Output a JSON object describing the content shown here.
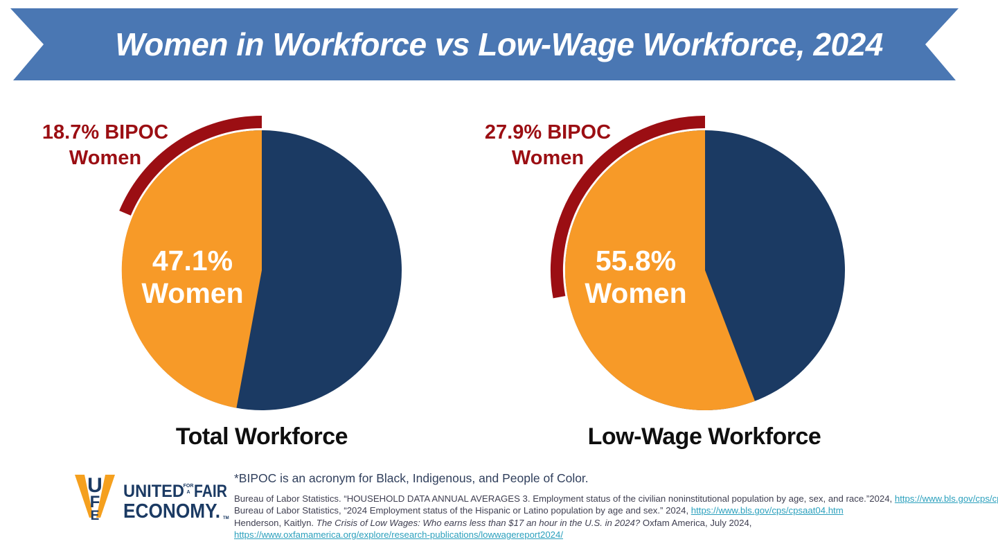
{
  "banner": {
    "title": "Women in Workforce vs Low-Wage Workforce, 2024",
    "color": "#4A77B3"
  },
  "chart_data": [
    {
      "type": "pie",
      "caption": "Total Workforce",
      "women_pct": 47.1,
      "bipoc_women_pct": 18.7,
      "center_label": [
        "47.1%",
        "Women"
      ],
      "arc_label": [
        "18.7% BIPOC",
        "Women"
      ],
      "slice_colors": {
        "women": "#F79A28",
        "remainder": "#1B3A63"
      },
      "arc_color": "#9B0E13"
    },
    {
      "type": "pie",
      "caption": "Low-Wage Workforce",
      "women_pct": 55.8,
      "bipoc_women_pct": 27.9,
      "center_label": [
        "55.8%",
        "Women"
      ],
      "arc_label": [
        "27.9% BIPOC",
        "Women"
      ],
      "slice_colors": {
        "women": "#F79A28",
        "remainder": "#1B3A63"
      },
      "arc_color": "#9B0E13"
    }
  ],
  "footer": {
    "logo": {
      "monogram": [
        "U",
        "F",
        "E"
      ],
      "word1": "UNITED",
      "word_mid_top": "FOR",
      "word_mid_bottom": "A",
      "word2": "FAIR",
      "word3": "ECONOMY.",
      "tm": "TM",
      "navy": "#1B3A63",
      "orange": "#F5A01E"
    },
    "footnote": "*BIPOC is an acronym for Black, Indigenous, and People of Color.",
    "citations": [
      {
        "text": "Bureau of Labor Statistics. “HOUSEHOLD DATA ANNUAL AVERAGES 3. Employment status of the civilian noninstitutional population by age, sex, and race.”2024, ",
        "link": "https://www.bls.gov/cps/cpsaat03.htm"
      },
      {
        "text": "Bureau of Labor Statistics, “2024 Employment status of the Hispanic or Latino population by age and sex.” 2024, ",
        "link": "https://www.bls.gov/cps/cpsaat04.htm"
      },
      {
        "before": "Henderson, Kaitlyn. ",
        "italic": "The Crisis of Low Wages: Who earns less than $17 an hour in the U.S. in 2024?",
        "after": " Oxfam America, July 2024,"
      },
      {
        "link": "https://www.oxfamamerica.org/explore/research-publications/lowwagereport2024/"
      }
    ]
  },
  "colors": {
    "background": "#FFFFFF",
    "banner_blue": "#4A77B3",
    "pie_orange": "#F79A28",
    "pie_navy": "#1B3A63",
    "arc_dark_red": "#9B0E13",
    "caption_text": "#0F0F0F",
    "footnote_text": "#303F5C",
    "citation_text": "#3F3F51",
    "link_teal": "#2BA0BD"
  }
}
